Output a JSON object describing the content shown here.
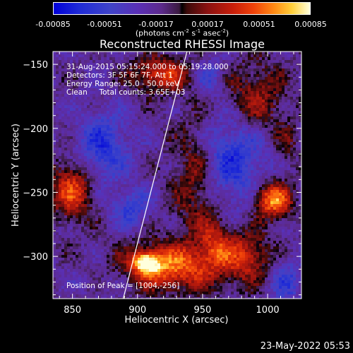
{
  "colorbar": {
    "ticks": [
      "-0.00085",
      "-0.00051",
      "-0.00017",
      "0.00017",
      "0.00051",
      "0.00085"
    ],
    "unit_base": "(photons cm",
    "unit_sup1": "-2",
    "unit_mid1": " s",
    "unit_sup2": "-1",
    "unit_mid2": " asec",
    "unit_sup3": "-2",
    "unit_end": ")"
  },
  "chart_data": {
    "type": "heatmap",
    "title": "Reconstructed RHESSI Image",
    "xlabel": "Heliocentric X (arcsec)",
    "ylabel": "Heliocentric Y (arcsec)",
    "xlim": [
      835,
      1026
    ],
    "ylim": [
      -333,
      -140
    ],
    "xticks": [
      850,
      900,
      950,
      1000
    ],
    "yticks": [
      -150,
      -200,
      -250,
      -300
    ],
    "value_range": [
      -0.00085,
      0.00085
    ],
    "annotations": [
      "31-Aug-2015 05:15:24.000 to 05:19:28.000",
      "Detectors: 3F 5F 6F 7F, Att 1",
      "Energy Range: 25.0 - 50.0 keV",
      "Clean     Total counts: 3.65E+03"
    ],
    "peak_label": "Position of Peak = [1004,-256]",
    "peak": [
      1004,
      -256
    ],
    "limb_line": [
      [
        889,
        -333
      ],
      [
        938,
        -140
      ]
    ],
    "sources": [
      {
        "x": 925,
        "y": -308,
        "w": 35,
        "h": 18,
        "v": 0.00072
      },
      {
        "x": 907,
        "y": -305,
        "w": 10,
        "h": 8,
        "v": 0.0008
      },
      {
        "x": 850,
        "y": -248,
        "w": 16,
        "h": 22,
        "v": 0.00062
      },
      {
        "x": 1004,
        "y": -256,
        "w": 14,
        "h": 14,
        "v": 0.00085
      },
      {
        "x": 983,
        "y": -300,
        "w": 18,
        "h": 20,
        "v": 0.00052
      },
      {
        "x": 918,
        "y": -158,
        "w": 22,
        "h": 13,
        "v": 0.00058
      },
      {
        "x": 945,
        "y": -235,
        "w": 18,
        "h": 48,
        "v": 0.00047
      },
      {
        "x": 990,
        "y": -178,
        "w": 24,
        "h": 28,
        "v": 0.00042
      },
      {
        "x": 960,
        "y": -290,
        "w": 12,
        "h": 20,
        "v": 0.0004
      },
      {
        "x": 870,
        "y": -320,
        "w": 18,
        "h": 9,
        "v": -0.00012
      },
      {
        "x": 1014,
        "y": -215,
        "w": 10,
        "h": 18,
        "v": 0.00022
      }
    ],
    "dark_regions": [
      {
        "x": 970,
        "y": -222,
        "w": 30,
        "h": 38,
        "v": -0.0005
      },
      {
        "x": 873,
        "y": -215,
        "w": 20,
        "h": 28,
        "v": -0.00046
      },
      {
        "x": 895,
        "y": -262,
        "w": 14,
        "h": 14,
        "v": -0.00038
      },
      {
        "x": 1015,
        "y": -320,
        "w": 12,
        "h": 18,
        "v": -0.00034
      },
      {
        "x": 955,
        "y": -160,
        "w": 12,
        "h": 14,
        "v": -0.0003
      }
    ]
  },
  "footer": {
    "date": "23-May-2022 05:53"
  }
}
